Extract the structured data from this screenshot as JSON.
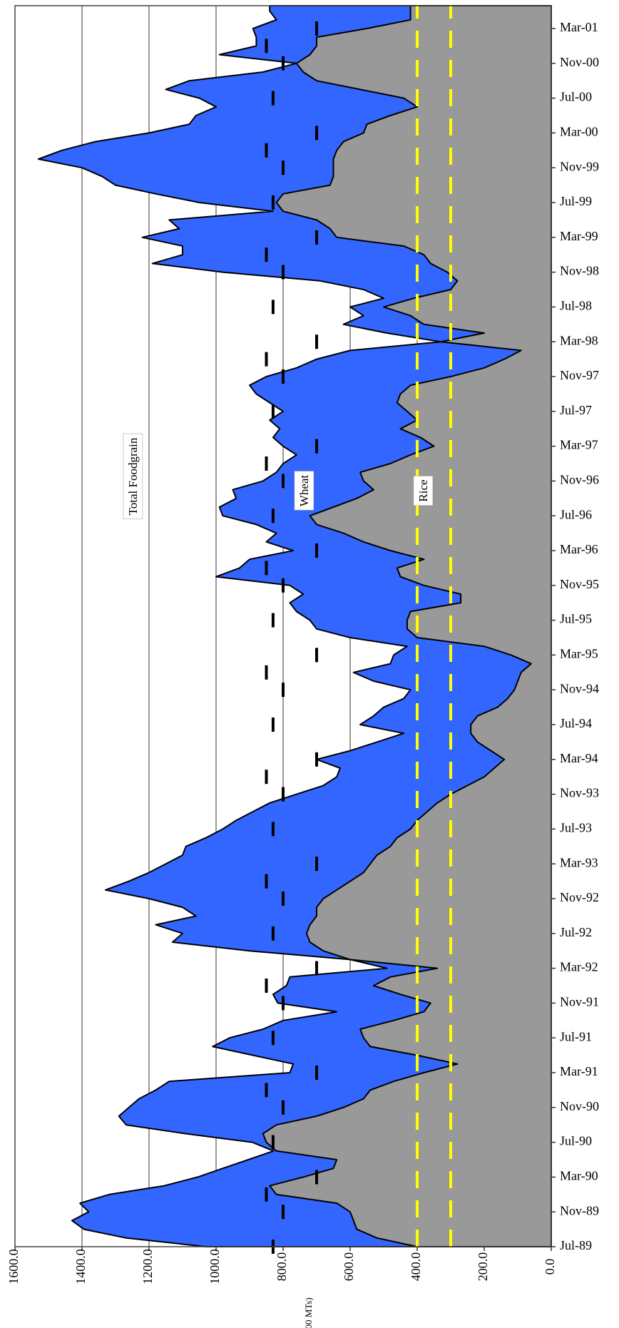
{
  "chart_data": {
    "type": "area",
    "y_axis_label": "('000 MTs)",
    "categories": [
      "Jul-89",
      null,
      null,
      null,
      "Nov-89",
      null,
      null,
      null,
      "Mar-90",
      null,
      null,
      null,
      "Jul-90",
      null,
      null,
      null,
      "Nov-90",
      null,
      null,
      null,
      "Mar-91",
      null,
      null,
      null,
      "Jul-91",
      null,
      null,
      null,
      "Nov-91",
      null,
      null,
      null,
      "Mar-92",
      null,
      null,
      null,
      "Jul-92",
      null,
      null,
      null,
      "Nov-92",
      null,
      null,
      null,
      "Mar-93",
      null,
      null,
      null,
      "Jul-93",
      null,
      null,
      null,
      "Nov-93",
      null,
      null,
      null,
      "Mar-94",
      null,
      null,
      null,
      "Jul-94",
      null,
      null,
      null,
      "Nov-94",
      null,
      null,
      null,
      "Mar-95",
      null,
      null,
      null,
      "Jul-95",
      null,
      null,
      null,
      "Nov-95",
      null,
      null,
      null,
      "Mar-96",
      null,
      null,
      null,
      "Jul-96",
      null,
      null,
      null,
      "Nov-96",
      null,
      null,
      null,
      "Mar-97",
      null,
      null,
      null,
      "Jul-97",
      null,
      null,
      null,
      "Nov-97",
      null,
      null,
      null,
      "Mar-98",
      null,
      null,
      null,
      "Jul-98",
      null,
      null,
      null,
      "Nov-98",
      null,
      null,
      null,
      "Mar-99",
      null,
      null,
      null,
      "Jul-99",
      null,
      null,
      null,
      "Nov-99",
      null,
      null,
      null,
      "Mar-00",
      null,
      null,
      null,
      "Jul-00",
      null,
      null,
      null,
      "Nov-00",
      null,
      null,
      null,
      "Mar-01",
      null,
      null
    ],
    "series": [
      {
        "name": "Total Foodgrain",
        "color": "#3366ff",
        "values": [
          1030,
          1268,
          1394,
          1430,
          1380,
          1406,
          1319,
          1155,
          1055,
          980,
          904,
          829,
          892,
          1093,
          1268,
          1290,
          1260,
          1230,
          1180,
          1140,
          780,
          770,
          890,
          1010,
          960,
          860,
          800,
          640,
          816,
          830,
          790,
          780,
          490,
          600,
          900,
          1130,
          1100,
          1180,
          1060,
          1100,
          1200,
          1330,
          1260,
          1200,
          1150,
          1100,
          1090,
          1030,
          980,
          940,
          890,
          840,
          760,
          680,
          640,
          630,
          700,
          600,
          520,
          440,
          570,
          530,
          500,
          440,
          420,
          530,
          590,
          480,
          470,
          430,
          600,
          700,
          720,
          760,
          780,
          740,
          780,
          1000,
          930,
          900,
          770,
          850,
          820,
          880,
          980,
          990,
          940,
          950,
          860,
          820,
          800,
          760,
          800,
          830,
          810,
          840,
          800,
          840,
          880,
          900,
          850,
          760,
          700,
          600,
          330,
          490,
          620,
          560,
          600,
          500,
          560,
          690,
          980,
          1190,
          1100,
          1100,
          1220,
          1110,
          1140,
          830,
          1050,
          1180,
          1300,
          1340,
          1400,
          1530,
          1460,
          1360,
          1200,
          1080,
          1060,
          1000,
          1050,
          1150,
          1080,
          860,
          760,
          990,
          880,
          880,
          890,
          820,
          840
        ]
      },
      {
        "name": "Rice",
        "color": "#999999",
        "values": [
          400,
          520,
          580,
          590,
          600,
          640,
          820,
          840,
          740,
          650,
          640,
          820,
          850,
          860,
          820,
          700,
          620,
          560,
          540,
          470,
          380,
          280,
          400,
          540,
          560,
          570,
          470,
          380,
          360,
          450,
          530,
          480,
          340,
          600,
          680,
          720,
          730,
          720,
          700,
          700,
          680,
          640,
          600,
          560,
          540,
          520,
          480,
          460,
          420,
          400,
          370,
          340,
          300,
          250,
          200,
          170,
          140,
          180,
          220,
          240,
          240,
          220,
          160,
          130,
          110,
          100,
          90,
          60,
          120,
          200,
          400,
          430,
          430,
          420,
          270,
          270,
          380,
          450,
          460,
          380,
          480,
          560,
          620,
          700,
          720,
          650,
          580,
          530,
          560,
          570,
          480,
          420,
          350,
          390,
          450,
          400,
          430,
          460,
          450,
          420,
          300,
          200,
          140,
          90,
          330,
          200,
          380,
          420,
          500,
          410,
          300,
          280,
          310,
          360,
          380,
          440,
          640,
          660,
          700,
          800,
          820,
          800,
          660,
          650,
          650,
          650,
          640,
          620,
          560,
          550,
          480,
          400,
          440,
          570,
          700,
          740,
          760,
          720,
          700,
          700,
          550,
          420,
          420
        ]
      }
    ],
    "annotations": [
      "Wheat"
    ],
    "norm_values": {
      "color": "#000000",
      "values": [
        830,
        null,
        null,
        null,
        800,
        null,
        850,
        null,
        700,
        null,
        null,
        null,
        830,
        null,
        null,
        null,
        800,
        null,
        850,
        null,
        700,
        null,
        null,
        null,
        830,
        null,
        null,
        null,
        800,
        null,
        850,
        null,
        700,
        null,
        null,
        null,
        830,
        null,
        null,
        null,
        800,
        null,
        850,
        null,
        700,
        null,
        null,
        null,
        830,
        null,
        null,
        null,
        800,
        null,
        850,
        null,
        700,
        null,
        null,
        null,
        830,
        null,
        null,
        null,
        800,
        null,
        850,
        null,
        700,
        null,
        null,
        null,
        830,
        null,
        null,
        null,
        800,
        null,
        850,
        null,
        700,
        null,
        null,
        null,
        830,
        null,
        null,
        null,
        800,
        null,
        850,
        null,
        700,
        null,
        null,
        null,
        830,
        null,
        null,
        null,
        800,
        null,
        850,
        null,
        700,
        null,
        null,
        null,
        830,
        null,
        null,
        null,
        800,
        null,
        850,
        null,
        700,
        null,
        null,
        null,
        830,
        null,
        null,
        null,
        800,
        null,
        850,
        null,
        700,
        null,
        null,
        null,
        830,
        null,
        null,
        null,
        800,
        null,
        850,
        null,
        700,
        null,
        null
      ]
    },
    "reference_lines": {
      "color": "#ffff00",
      "values": [
        300,
        400
      ]
    },
    "ylim": [
      0,
      1600
    ],
    "yticks": [
      {
        "value": 0,
        "label": "0.0"
      },
      {
        "value": 200,
        "label": "200.0"
      },
      {
        "value": 400,
        "label": "400.0"
      },
      {
        "value": 600,
        "label": "600.0"
      },
      {
        "value": 800,
        "label": "800.0"
      },
      {
        "value": 1000,
        "label": "1000.0"
      },
      {
        "value": 1200,
        "label": "1200.0"
      },
      {
        "value": 1400,
        "label": "1400.0"
      },
      {
        "value": 1600,
        "label": "1600.0"
      }
    ],
    "grid": true
  }
}
